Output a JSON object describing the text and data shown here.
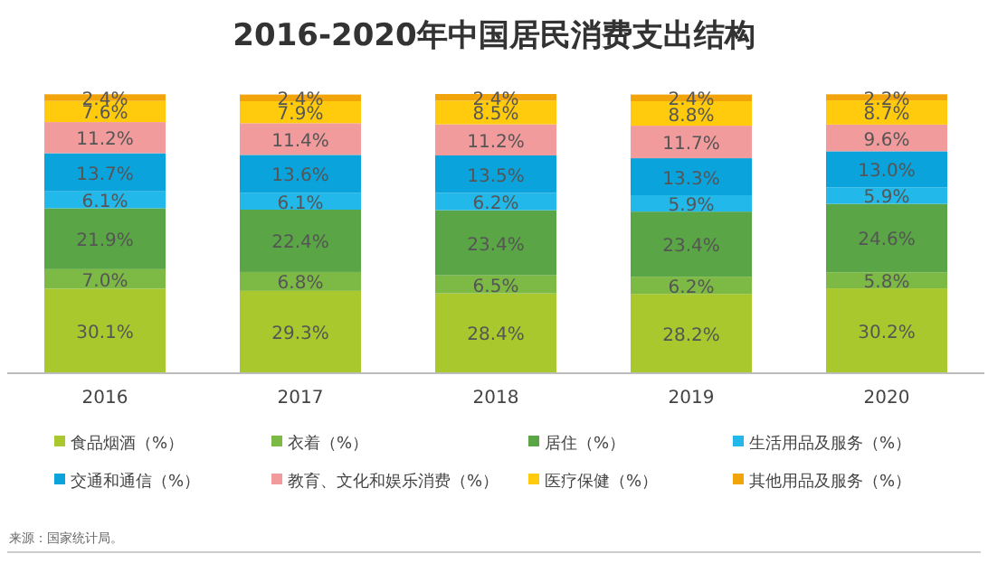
{
  "chart_data": {
    "type": "bar",
    "stacked": true,
    "title": "2016-2020年中国居民消费支出结构",
    "categories": [
      "2016",
      "2017",
      "2018",
      "2019",
      "2020"
    ],
    "series": [
      {
        "name": "食品烟酒（%）",
        "color": "#a8c82e",
        "values": [
          30.1,
          29.3,
          28.4,
          28.2,
          30.2
        ],
        "value_labels": [
          "30.1%",
          "29.3%",
          "28.4%",
          "28.2%",
          "30.2%"
        ]
      },
      {
        "name": "衣着（%）",
        "color": "#7dba45",
        "values": [
          7.0,
          6.8,
          6.5,
          6.2,
          5.8
        ],
        "value_labels": [
          "7.0%",
          "6.8%",
          "6.5%",
          "6.2%",
          "5.8%"
        ]
      },
      {
        "name": "居住（%）",
        "color": "#5aa545",
        "values": [
          21.9,
          22.4,
          23.4,
          23.4,
          24.6
        ],
        "value_labels": [
          "21.9%",
          "22.4%",
          "23.4%",
          "23.4%",
          "24.6%"
        ]
      },
      {
        "name": "生活用品及服务（%）",
        "color": "#22b8ea",
        "values": [
          6.1,
          6.1,
          6.2,
          5.9,
          5.9
        ],
        "value_labels": [
          "6.1%",
          "6.1%",
          "6.2%",
          "5.9%",
          "5.9%"
        ]
      },
      {
        "name": "交通和通信（%）",
        "color": "#0aa3dc",
        "values": [
          13.7,
          13.6,
          13.5,
          13.3,
          13.0
        ],
        "value_labels": [
          "13.7%",
          "13.6%",
          "13.5%",
          "13.3%",
          "13.0%"
        ]
      },
      {
        "name": "教育、文化和娱乐消费（%）",
        "color": "#f29b9d",
        "values": [
          11.2,
          11.4,
          11.2,
          11.7,
          9.6
        ],
        "value_labels": [
          "11.2%",
          "11.4%",
          "11.2%",
          "11.7%",
          "9.6%"
        ]
      },
      {
        "name": "医疗保健（%）",
        "color": "#ffcb0c",
        "values": [
          7.6,
          7.9,
          8.5,
          8.8,
          8.7
        ],
        "value_labels": [
          "7.6%",
          "7.9%",
          "8.5%",
          "8.8%",
          "8.7%"
        ]
      },
      {
        "name": "其他用品及服务（%）",
        "color": "#f2a50a",
        "values": [
          2.4,
          2.4,
          2.4,
          2.4,
          2.2
        ],
        "value_labels": [
          "2.4%",
          "2.4%",
          "2.4%",
          "2.4%",
          "2.2%"
        ]
      }
    ],
    "legend": "bottom",
    "annotations": [
      "来源：国家统计局。"
    ]
  }
}
